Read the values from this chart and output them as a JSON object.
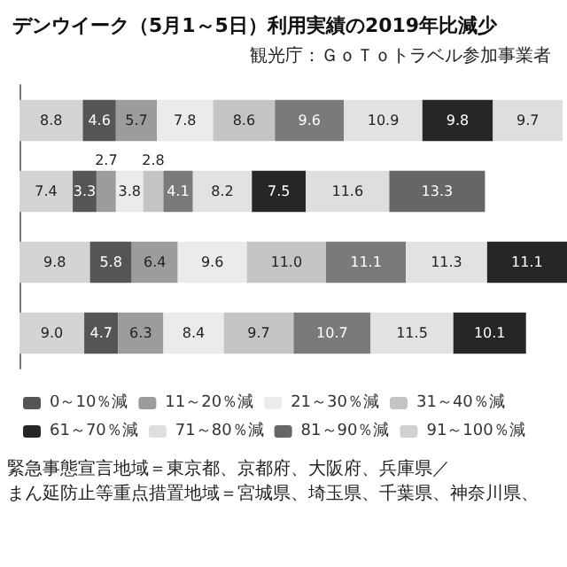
{
  "chart_data": {
    "type": "bar",
    "orientation": "horizontal",
    "stacked": true,
    "title": "デンウイーク（5月1～5日）利用実績の2019年比減少",
    "subtitle": "観光庁：ＧｏＴｏトラベル参加事業者",
    "categories": [
      null,
      null,
      null,
      null
    ],
    "legend": "bottom",
    "series": [
      {
        "color": "#d4d4d4",
        "values": [
          8.8,
          7.4,
          9.8,
          9.0
        ],
        "value_labels": [
          "8.8",
          "7.4",
          "9.8",
          "9.0"
        ]
      },
      {
        "name": "0～10％減",
        "color": "#555555",
        "values": [
          4.6,
          3.3,
          5.8,
          4.7
        ],
        "value_labels": [
          "4.6",
          "3.3",
          "5.8",
          "4.7"
        ]
      },
      {
        "name": "11～20％減",
        "color": "#9c9c9c",
        "values": [
          5.7,
          2.7,
          6.4,
          6.3
        ],
        "value_labels": [
          "5.7",
          "2.7",
          "6.4",
          "6.3"
        ]
      },
      {
        "name": "21～30％減",
        "color": "#ebebeb",
        "values": [
          7.8,
          3.8,
          9.6,
          8.4
        ],
        "value_labels": [
          "7.8",
          "3.8",
          "9.6",
          "8.4"
        ]
      },
      {
        "name": "31～40％減",
        "color": "#c4c4c4",
        "values": [
          8.6,
          2.8,
          11.0,
          9.7
        ],
        "value_labels": [
          "8.6",
          "2.8",
          "11.0",
          "9.7"
        ]
      },
      {
        "color": "#7a7a7a",
        "values": [
          9.6,
          4.1,
          11.1,
          10.7
        ],
        "value_labels": [
          "9.6",
          "4.1",
          "11.1",
          "10.7"
        ]
      },
      {
        "color": "#e2e2e2",
        "values": [
          10.9,
          8.2,
          11.3,
          11.5
        ],
        "value_labels": [
          "10.9",
          "8.2",
          "11.3",
          "11.5"
        ]
      },
      {
        "name": "61～70％減",
        "color": "#262626",
        "values": [
          9.8,
          7.5,
          11.1,
          10.1
        ],
        "value_labels": [
          "9.8",
          "7.5",
          "11.1",
          "10.1"
        ]
      },
      {
        "name": "71～80％減",
        "color": "#dedede",
        "values": [
          9.7,
          11.6,
          null,
          null
        ],
        "value_labels": [
          "9.7",
          "11.6",
          null,
          null
        ]
      },
      {
        "name": "81～90％減",
        "color": "#666666",
        "values": [
          null,
          13.3,
          null,
          null
        ],
        "value_labels": [
          null,
          "13.3",
          null,
          null
        ]
      },
      {
        "name": "91～100％減",
        "color": "#d0d0d0",
        "values": [
          null,
          null,
          null,
          null
        ]
      }
    ],
    "annotations": [
      "緊急事態宣言地域＝東京都、京都府、大阪府、兵庫県／",
      "まん延防止等重点措置地域＝宮城県、埼玉県、千葉県、神奈川県、"
    ]
  }
}
